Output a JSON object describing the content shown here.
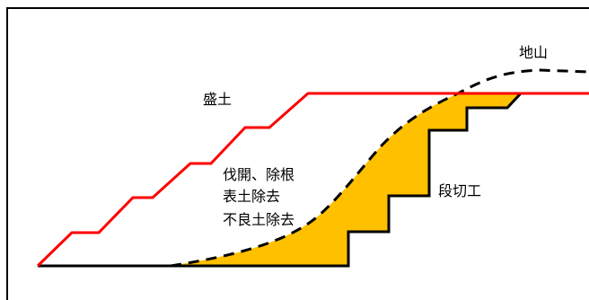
{
  "labels": {
    "embankment": "盛土",
    "original_ground": "地山",
    "clearing_line1": "伐開、除根",
    "clearing_line2": "表土除去",
    "clearing_line3": "不良土除去",
    "benching": "段切工"
  },
  "colors": {
    "embankment_line": "#ff0000",
    "cut_fill": "#ffc000",
    "ground_line": "#000000",
    "frame": "#000000",
    "background": "#ffffff"
  }
}
